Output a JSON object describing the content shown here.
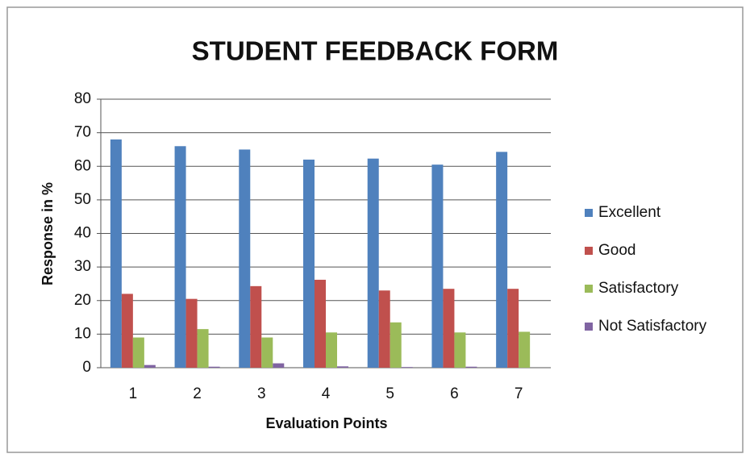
{
  "chart_data": {
    "type": "bar",
    "title": "STUDENT FEEDBACK FORM",
    "x_label": "Evaluation Points",
    "y_label": "Response in %",
    "categories": [
      "1",
      "2",
      "3",
      "4",
      "5",
      "6",
      "7"
    ],
    "series": [
      {
        "name": "Excellent",
        "color": "#4f81bd",
        "values": [
          68,
          66,
          65,
          62,
          62.3,
          60.5,
          64.3
        ]
      },
      {
        "name": "Good",
        "color": "#c0504d",
        "values": [
          22,
          20.5,
          24.3,
          26.2,
          23,
          23.5,
          23.5
        ]
      },
      {
        "name": "Satisfactory",
        "color": "#9bbb59",
        "values": [
          9,
          11.5,
          9,
          10.5,
          13.5,
          10.5,
          10.7
        ]
      },
      {
        "name": "Not Satisfactory",
        "color": "#8064a2",
        "values": [
          0.8,
          0.3,
          1.3,
          0.4,
          0.2,
          0.3,
          0
        ]
      }
    ],
    "ylim": [
      0,
      80
    ],
    "yticks": [
      0,
      10,
      20,
      30,
      40,
      50,
      60,
      70,
      80
    ],
    "grid": true,
    "legend": "right"
  }
}
